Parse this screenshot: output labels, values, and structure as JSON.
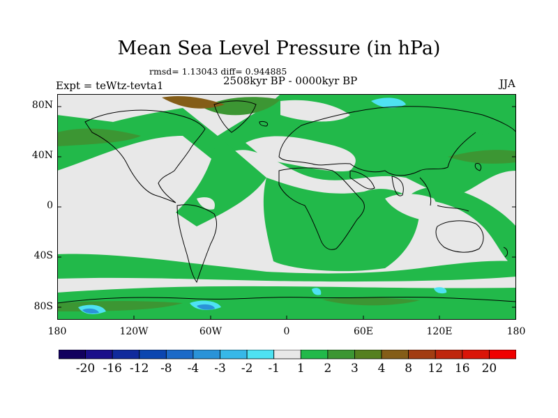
{
  "title": "Mean Sea Level Pressure (in hPa)",
  "stats": "rmsd= 1.13043 diff= 0.944885",
  "period": "2508kyr BP - 0000kyr BP",
  "expt": "Expt = teWtz-tevta1",
  "season": "JJA",
  "lat_ticks": [
    "80N",
    "40N",
    "0",
    "40S",
    "80S"
  ],
  "lon_ticks": [
    "180",
    "120W",
    "60W",
    "0",
    "60E",
    "120E",
    "180"
  ],
  "colorbar": {
    "labels": [
      "-20",
      "-16",
      "-12",
      "-8",
      "-4",
      "-3",
      "-2",
      "-1",
      "1",
      "2",
      "3",
      "4",
      "8",
      "12",
      "16",
      "20"
    ],
    "colors": [
      "#12005e",
      "#1b0f8a",
      "#102a9c",
      "#0b46b0",
      "#1c6ac8",
      "#2a93d8",
      "#37b8e8",
      "#4ee2f2",
      "#e8e8e8",
      "#22b94a",
      "#3c9633",
      "#55801f",
      "#845d18",
      "#a23d12",
      "#bf260d",
      "#da1508",
      "#f00000"
    ]
  },
  "map_colors": {
    "neutral": "#e8e8e8",
    "pos_1": "#22b94a",
    "pos_2": "#3c9633",
    "pos_3": "#55801f",
    "pos_4": "#845d18",
    "neg_1": "#4ee2f2",
    "neg_2": "#37b8e8",
    "neg_3": "#2a93d8",
    "coast": "#000000"
  }
}
